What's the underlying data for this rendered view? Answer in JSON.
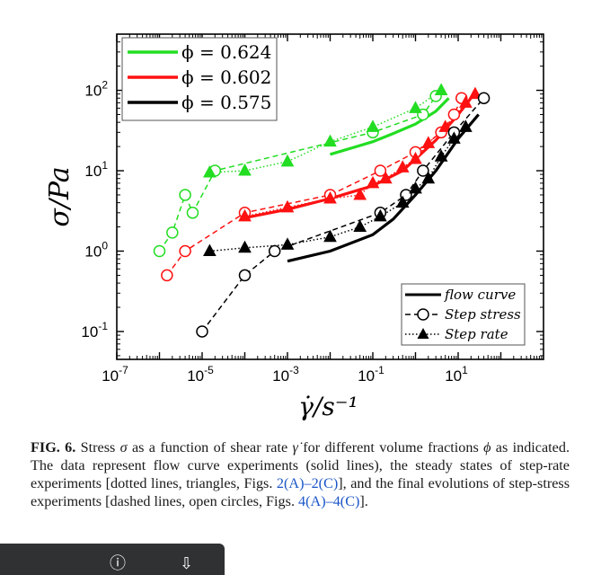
{
  "chart_data": {
    "type": "scatter",
    "x_scale": "log",
    "y_scale": "log",
    "xlim": [
      1e-07,
      1000.0
    ],
    "ylim": [
      0.045,
      500
    ],
    "xlabel": "γ̇/s⁻¹",
    "ylabel": "σ/Pa",
    "x_ticks": [
      {
        "value": 1e-07,
        "base": "10",
        "exp": "-7"
      },
      {
        "value": 1e-05,
        "base": "10",
        "exp": "-5"
      },
      {
        "value": 0.001,
        "base": "10",
        "exp": "-3"
      },
      {
        "value": 0.1,
        "base": "10",
        "exp": "-1"
      },
      {
        "value": 10,
        "base": "10",
        "exp": "1"
      }
    ],
    "y_ticks": [
      {
        "value": 0.1,
        "base": "10",
        "exp": "-1"
      },
      {
        "value": 1,
        "base": "10",
        "exp": "0"
      },
      {
        "value": 10,
        "base": "10",
        "exp": "1"
      },
      {
        "value": 100,
        "base": "10",
        "exp": "2"
      }
    ],
    "legend_phi": [
      {
        "label": "ϕ = 0.624",
        "color": "#22dd22"
      },
      {
        "label": "ϕ = 0.602",
        "color": "#ff1111"
      },
      {
        "label": "ϕ = 0.575",
        "color": "#000000"
      }
    ],
    "legend_type": [
      {
        "label": "flow curve",
        "kind": "line"
      },
      {
        "label": "Step stress",
        "kind": "circle"
      },
      {
        "label": "Step rate",
        "kind": "triangle"
      }
    ],
    "groups": [
      {
        "phi": "0.624",
        "color": "#22dd22",
        "flow": [
          [
            0.01,
            16
          ],
          [
            0.03,
            19
          ],
          [
            0.1,
            23
          ],
          [
            0.3,
            29
          ],
          [
            1,
            38
          ],
          [
            3,
            55
          ],
          [
            6,
            80
          ]
        ],
        "step_stress": [
          [
            1e-06,
            1
          ],
          [
            2e-06,
            1.7
          ],
          [
            4e-06,
            5
          ],
          [
            6e-06,
            3
          ],
          [
            2e-05,
            10
          ],
          [
            0.1,
            30
          ],
          [
            1.5,
            50
          ],
          [
            3,
            85
          ]
        ],
        "step_rate": [
          [
            1.5e-05,
            9.5
          ],
          [
            0.0001,
            10
          ],
          [
            0.001,
            13
          ],
          [
            0.01,
            23
          ],
          [
            0.1,
            35
          ],
          [
            1,
            60
          ],
          [
            4,
            100
          ]
        ]
      },
      {
        "phi": "0.602",
        "color": "#ff1111",
        "flow": [
          [
            0.0001,
            2.6
          ],
          [
            0.001,
            3.3
          ],
          [
            0.01,
            4.5
          ],
          [
            0.1,
            6.5
          ],
          [
            0.5,
            10
          ],
          [
            1,
            14
          ],
          [
            3,
            24
          ],
          [
            10,
            50
          ],
          [
            20,
            80
          ]
        ],
        "step_stress": [
          [
            1.5e-06,
            0.5
          ],
          [
            4e-06,
            1
          ],
          [
            0.0001,
            3
          ],
          [
            0.01,
            5
          ],
          [
            0.15,
            10
          ],
          [
            1,
            17
          ],
          [
            4,
            30
          ],
          [
            8,
            50
          ],
          [
            12,
            80
          ]
        ],
        "step_rate": [
          [
            0.0001,
            2.7
          ],
          [
            0.001,
            3.5
          ],
          [
            0.01,
            4.5
          ],
          [
            0.05,
            5
          ],
          [
            0.1,
            7
          ],
          [
            0.2,
            8
          ],
          [
            0.5,
            11
          ],
          [
            1,
            14
          ],
          [
            2,
            22
          ],
          [
            5,
            35
          ],
          [
            15,
            70
          ],
          [
            25,
            90
          ]
        ]
      },
      {
        "phi": "0.575",
        "color": "#000000",
        "flow": [
          [
            0.001,
            0.75
          ],
          [
            0.01,
            1.0
          ],
          [
            0.1,
            1.6
          ],
          [
            0.3,
            2.5
          ],
          [
            1,
            5
          ],
          [
            3,
            10
          ],
          [
            10,
            25
          ],
          [
            30,
            50
          ]
        ],
        "step_stress": [
          [
            1e-05,
            0.1
          ],
          [
            0.0001,
            0.5
          ],
          [
            0.0005,
            1
          ],
          [
            0.15,
            3
          ],
          [
            0.6,
            5
          ],
          [
            1.5,
            10
          ],
          [
            8,
            30
          ],
          [
            40,
            80
          ]
        ],
        "step_rate": [
          [
            1.5e-05,
            1
          ],
          [
            0.0001,
            1.1
          ],
          [
            0.001,
            1.2
          ],
          [
            0.01,
            1.5
          ],
          [
            0.05,
            2
          ],
          [
            0.15,
            2.7
          ],
          [
            0.5,
            4
          ],
          [
            1,
            6
          ],
          [
            2,
            8
          ],
          [
            4,
            15
          ],
          [
            8,
            25
          ],
          [
            15,
            35
          ]
        ]
      }
    ]
  },
  "caption": {
    "label": "FIG. 6.",
    "t1": " Stress ",
    "sigma": "σ",
    "t2": " as a function of shear rate ",
    "gammadot": "γ̇",
    "t3": " for different volume fractions ",
    "phi": "ϕ",
    "t4": " as indicated. The data represent flow curve experiments (solid lines), the steady states of step-rate experiments [dotted lines, triangles, Figs. ",
    "ref1": "2(A)–2(C)",
    "t5": "], and the final evolutions of step-stress experiments [dashed lines, open circles, Figs. ",
    "ref2": "4(A)–4(C)",
    "t6": "]."
  },
  "bottom_bar": {
    "icons": [
      "info-icon",
      "download-icon"
    ]
  }
}
